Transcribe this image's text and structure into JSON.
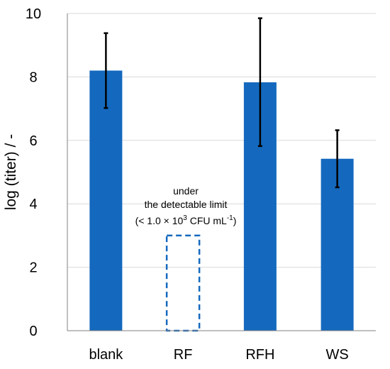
{
  "chart_data": {
    "type": "bar",
    "categories": [
      "blank",
      "RF",
      "RFH",
      "WS"
    ],
    "values": [
      8.2,
      null,
      7.83,
      5.42
    ],
    "error_low": [
      7.02,
      null,
      5.82,
      4.52
    ],
    "error_high": [
      9.38,
      null,
      9.85,
      6.32
    ],
    "ylabel": "log (titer) / -",
    "xlabel": "",
    "ylim": [
      0,
      10
    ],
    "yticks": [
      0,
      2,
      4,
      6,
      8,
      10
    ],
    "grid": true,
    "bar_color": "#1469BE",
    "annotation": {
      "category": "RF",
      "placeholder_value": 3,
      "line1": "under",
      "line2": "the detectable limit",
      "line3_prefix": "(< 1.0 × 10",
      "line3_exp": "3",
      "line3_mid": " CFU mL",
      "line3_exp2": "-1",
      "line3_suffix": ")"
    }
  }
}
